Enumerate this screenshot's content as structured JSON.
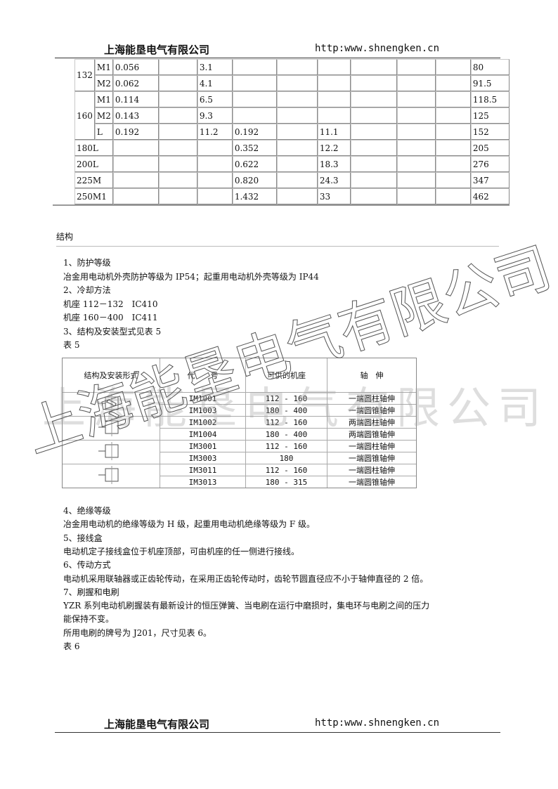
{
  "header": {
    "company": "上海能垦电气有限公司",
    "url": "http:www.shnengken.cn"
  },
  "table_top": {
    "rows": [
      [
        "132",
        "M1",
        "0.056",
        "",
        "3.1",
        "",
        "",
        "",
        "",
        "",
        "",
        "80"
      ],
      [
        "",
        "M2",
        "0.062",
        "",
        "4.1",
        "",
        "",
        "",
        "",
        "",
        "",
        "91.5"
      ],
      [
        "160",
        "M1",
        "0.114",
        "",
        "6.5",
        "",
        "",
        "",
        "",
        "",
        "",
        "118.5"
      ],
      [
        "",
        "M2",
        "0.143",
        "",
        "9.3",
        "",
        "",
        "",
        "",
        "",
        "",
        "125"
      ],
      [
        "",
        "L",
        "0.192",
        "",
        "11.2",
        "0.192",
        "",
        "11.1",
        "",
        "",
        "",
        "152"
      ],
      [
        "180L",
        "",
        "",
        "",
        "",
        "0.352",
        "",
        "12.2",
        "",
        "",
        "",
        "205"
      ],
      [
        "200L",
        "",
        "",
        "",
        "",
        "0.622",
        "",
        "18.3",
        "",
        "",
        "",
        "276"
      ],
      [
        "225M",
        "",
        "",
        "",
        "",
        "0.820",
        "",
        "24.3",
        "",
        "",
        "",
        "347"
      ],
      [
        "250M1",
        "",
        "",
        "",
        "",
        "1.432",
        "",
        "33",
        "",
        "",
        "",
        "462"
      ]
    ]
  },
  "section_title": "结构",
  "lines": [
    "1、防护等级",
    "冶金用电动机外壳防护等级为 IP54；起重用电动机外壳等级为 IP44",
    "2、冷却方法",
    "机座 112－132　IC410",
    "机座 160－400　IC411",
    "3、结构及安装型式见表 5",
    " 表 5"
  ],
  "table5": {
    "headers": [
      "结构及安装形式",
      "代　　号",
      "可供的机座",
      "轴　伸"
    ],
    "rows": [
      [
        "IM1001",
        "112 - 160",
        "一端圆柱轴伸"
      ],
      [
        "IM1003",
        "180 - 400",
        "一端圆锥轴伸"
      ],
      [
        "IM1002",
        "112 - 160",
        "两端圆柱轴伸"
      ],
      [
        "IM1004",
        "180 - 400",
        "两端圆锥轴伸"
      ],
      [
        "IM3001",
        "112 - 160",
        "一端圆柱轴伸"
      ],
      [
        "IM3003",
        "180",
        "一端圆锥轴伸"
      ],
      [
        "IM3011",
        "112 - 160",
        "一端圆柱轴伸"
      ],
      [
        "IM3013",
        "180 - 315",
        "一端圆锥轴伸"
      ]
    ]
  },
  "lines2": [
    "4、绝缘等级",
    "冶金用电动机的绝缘等级为 H 级，起重用电动机绝缘等级为 F 级。",
    "5、接线盒",
    "电动机定子接线盒位于机座顶部，可由机座的任一侧进行接线。",
    "6、传动方式",
    "电动机采用联轴器或正齿轮传动，在采用正齿轮传动时，齿轮节圆直径应不小于轴伸直径的 2 倍。",
    "7、刷握和电刷",
    "YZR 系列电动机刷握装有最新设计的恒压弹簧、当电刷在运行中磨损时，集电环与电刷之间的压力",
    "能保持不变。",
    "所用电刷的牌号为 J201，尺寸见表 6。",
    " 表 6"
  ],
  "watermark": "上海能垦电气有限公司"
}
